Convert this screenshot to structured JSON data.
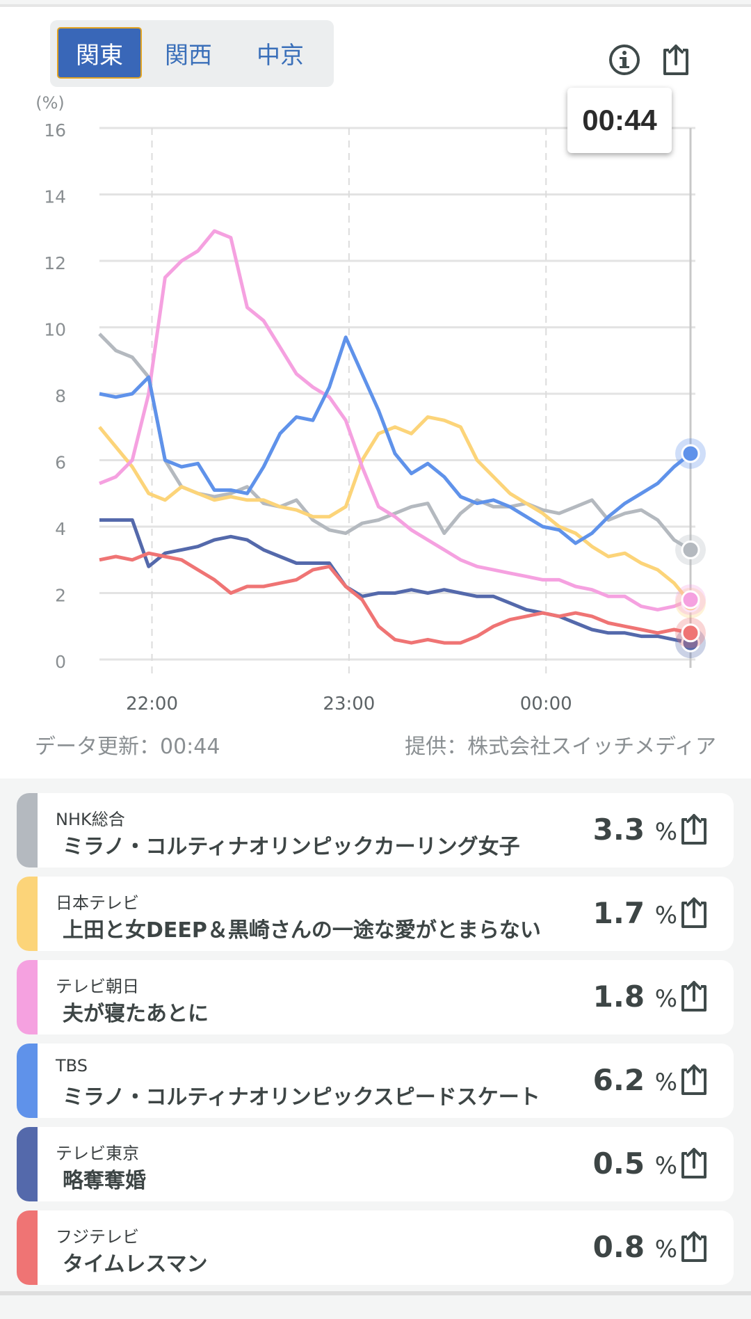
{
  "tabs": [
    {
      "label": "関東",
      "active": true
    },
    {
      "label": "関西"
    },
    {
      "label": "中京"
    }
  ],
  "tooltip_time": "00:44",
  "footer": {
    "updated": "データ更新：00:44",
    "provider": "提供：株式会社スイッチメディア"
  },
  "chart_data": {
    "type": "line",
    "ylabel": "(%)",
    "ylim": [
      0,
      16
    ],
    "yticks": [
      0,
      2,
      4,
      6,
      8,
      10,
      12,
      14,
      16
    ],
    "x_start": "21:44",
    "x_end": "00:44",
    "x_step_minutes": 5,
    "xticks": [
      {
        "label": "22:00",
        "minute": 16
      },
      {
        "label": "23:00",
        "minute": 76
      },
      {
        "label": "00:00",
        "minute": 136
      }
    ],
    "series": [
      {
        "name": "NHK総合",
        "color": "#b4b9bf",
        "values": [
          9.8,
          9.3,
          9.1,
          8.5,
          6.0,
          5.2,
          5.0,
          4.9,
          5.0,
          5.2,
          4.7,
          4.6,
          4.8,
          4.2,
          3.9,
          3.8,
          4.1,
          4.2,
          4.4,
          4.6,
          4.7,
          3.8,
          4.4,
          4.8,
          4.6,
          4.6,
          4.7,
          4.5,
          4.4,
          4.6,
          4.8,
          4.2,
          4.4,
          4.5,
          4.2,
          3.6,
          3.3
        ]
      },
      {
        "name": "日本テレビ",
        "color": "#fcd479",
        "values": [
          7.0,
          6.4,
          5.8,
          5.0,
          4.8,
          5.2,
          5.0,
          4.8,
          4.9,
          4.8,
          4.8,
          4.6,
          4.5,
          4.3,
          4.3,
          4.6,
          6.0,
          6.8,
          7.0,
          6.8,
          7.3,
          7.2,
          7.0,
          6.0,
          5.5,
          5.0,
          4.7,
          4.4,
          4.0,
          3.8,
          3.4,
          3.1,
          3.2,
          2.9,
          2.7,
          2.3,
          1.7
        ]
      },
      {
        "name": "テレビ朝日",
        "color": "#f5a1e0",
        "values": [
          5.3,
          5.5,
          6.0,
          8.0,
          11.5,
          12.0,
          12.3,
          12.9,
          12.7,
          10.6,
          10.2,
          9.4,
          8.6,
          8.2,
          7.9,
          7.2,
          5.8,
          4.6,
          4.3,
          3.9,
          3.6,
          3.3,
          3.0,
          2.8,
          2.7,
          2.6,
          2.5,
          2.4,
          2.4,
          2.2,
          2.1,
          1.9,
          1.9,
          1.6,
          1.5,
          1.6,
          1.8
        ]
      },
      {
        "name": "TBS",
        "color": "#5f92ea",
        "values": [
          8.0,
          7.9,
          8.0,
          8.5,
          6.0,
          5.8,
          5.9,
          5.1,
          5.1,
          5.0,
          5.8,
          6.8,
          7.3,
          7.2,
          8.2,
          9.7,
          8.6,
          7.5,
          6.2,
          5.6,
          5.9,
          5.5,
          4.9,
          4.7,
          4.8,
          4.6,
          4.3,
          4.0,
          3.9,
          3.5,
          3.8,
          4.3,
          4.7,
          5.0,
          5.3,
          5.8,
          6.2
        ]
      },
      {
        "name": "テレビ東京",
        "color": "#5469ab",
        "values": [
          4.2,
          4.2,
          4.2,
          2.8,
          3.2,
          3.3,
          3.4,
          3.6,
          3.7,
          3.6,
          3.3,
          3.1,
          2.9,
          2.9,
          2.9,
          2.2,
          1.9,
          2.0,
          2.0,
          2.1,
          2.0,
          2.1,
          2.0,
          1.9,
          1.9,
          1.7,
          1.5,
          1.4,
          1.3,
          1.1,
          0.9,
          0.8,
          0.8,
          0.7,
          0.7,
          0.6,
          0.5
        ]
      },
      {
        "name": "フジテレビ",
        "color": "#ef7474",
        "values": [
          3.0,
          3.1,
          3.0,
          3.2,
          3.1,
          3.0,
          2.7,
          2.4,
          2.0,
          2.2,
          2.2,
          2.3,
          2.4,
          2.7,
          2.8,
          2.2,
          1.8,
          1.0,
          0.6,
          0.5,
          0.6,
          0.5,
          0.5,
          0.7,
          1.0,
          1.2,
          1.3,
          1.4,
          1.3,
          1.4,
          1.3,
          1.1,
          1.0,
          0.9,
          0.8,
          0.9,
          0.8
        ]
      }
    ]
  },
  "channels": [
    {
      "name": "NHK総合",
      "title": "ミラノ・コルティナオリンピックカーリング女子",
      "rating": "3.3",
      "unit": "%",
      "color": "#b4b9bf"
    },
    {
      "name": "日本テレビ",
      "title": "上田と女DEEP＆黒崎さんの一途な愛がとまらない",
      "rating": "1.7",
      "unit": "%",
      "color": "#fcd479"
    },
    {
      "name": "テレビ朝日",
      "title": "夫が寝たあとに",
      "rating": "1.8",
      "unit": "%",
      "color": "#f5a1e0"
    },
    {
      "name": "TBS",
      "title": "ミラノ・コルティナオリンピックスピードスケート",
      "rating": "6.2",
      "unit": "%",
      "color": "#5f92ea"
    },
    {
      "name": "テレビ東京",
      "title": "略奪奪婚",
      "rating": "0.5",
      "unit": "%",
      "color": "#5469ab"
    },
    {
      "name": "フジテレビ",
      "title": "タイムレスマン",
      "rating": "0.8",
      "unit": "%",
      "color": "#ef7474"
    }
  ]
}
